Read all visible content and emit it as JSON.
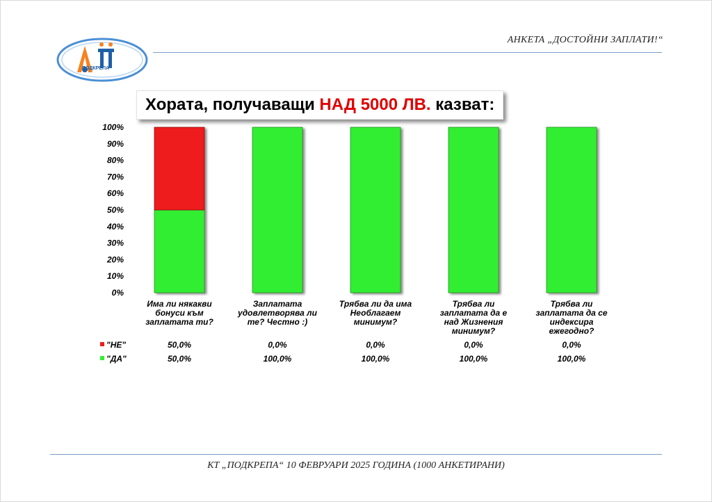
{
  "header": {
    "title": "АНКЕТА „ДОСТОЙНИ ЗАПЛАТИ!“"
  },
  "logo": {
    "text": "ПОДКРЕПА"
  },
  "headline": {
    "prefix": "Хората, получаващи ",
    "highlight": "НАД 5000 ЛВ.",
    "suffix": " казват:"
  },
  "footer": {
    "text": "КТ „ПОДКРЕПА“ 10 ФЕВРУАРИ 2025 ГОДИНА (1000 АНКЕТИРАНИ)"
  },
  "colors": {
    "no": "#ee1c1c",
    "yes": "#33ee33"
  },
  "chart_data": {
    "type": "bar",
    "stacked": true,
    "ylim": [
      0,
      100
    ],
    "yticks": [
      "0%",
      "10%",
      "20%",
      "30%",
      "40%",
      "50%",
      "60%",
      "70%",
      "80%",
      "90%",
      "100%"
    ],
    "categories": [
      [
        "Има ли някакви",
        "бонуси към",
        "заплатата ти?"
      ],
      [
        "Заплатата",
        "удовлетворява ли",
        "те? Честно :)"
      ],
      [
        "Трябва ли да има",
        "Необлагаем",
        "минимум?"
      ],
      [
        "Трябва ли",
        "заплатата да е",
        "над Жизнения",
        "минимум?"
      ],
      [
        "Трябва ли",
        "заплатата да се",
        "индексира",
        "ежегодно?"
      ]
    ],
    "series": [
      {
        "name": "\"НЕ\"",
        "values": [
          50,
          0,
          0,
          0,
          0
        ],
        "labels": [
          "50,0%",
          "0,0%",
          "0,0%",
          "0,0%",
          "0,0%"
        ]
      },
      {
        "name": "\"ДА\"",
        "values": [
          50,
          100,
          100,
          100,
          100
        ],
        "labels": [
          "50,0%",
          "100,0%",
          "100,0%",
          "100,0%",
          "100,0%"
        ]
      }
    ]
  }
}
